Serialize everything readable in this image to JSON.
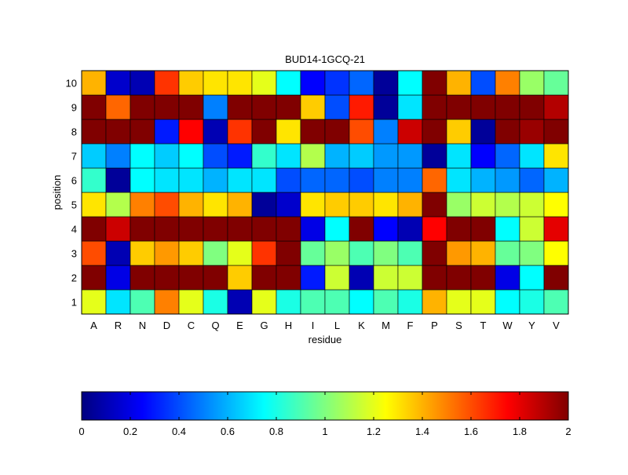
{
  "chart_data": {
    "type": "heatmap",
    "title": "BUD14-1GCQ-21",
    "xlabel": "residue",
    "ylabel": "position",
    "x_categories": [
      "A",
      "R",
      "N",
      "D",
      "C",
      "Q",
      "E",
      "G",
      "H",
      "I",
      "L",
      "K",
      "M",
      "F",
      "P",
      "S",
      "T",
      "W",
      "Y",
      "V"
    ],
    "y_categories": [
      "1",
      "2",
      "3",
      "4",
      "5",
      "6",
      "7",
      "8",
      "9",
      "10"
    ],
    "values": [
      [
        1.2,
        0.7,
        0.9,
        1.5,
        1.2,
        0.8,
        0.1,
        1.2,
        0.8,
        0.9,
        0.9,
        0.75,
        0.9,
        0.8,
        1.4,
        1.2,
        1.2,
        0.75,
        0.8,
        0.9
      ],
      [
        2.0,
        0.2,
        2.0,
        2.0,
        2.0,
        2.0,
        1.35,
        2.0,
        2.0,
        0.3,
        1.15,
        0.1,
        1.15,
        1.15,
        2.0,
        2.0,
        2.0,
        0.2,
        0.75,
        2.0
      ],
      [
        1.6,
        0.1,
        1.35,
        1.45,
        1.35,
        1.0,
        1.2,
        1.65,
        2.0,
        0.95,
        1.05,
        0.9,
        1.0,
        0.9,
        2.0,
        1.45,
        1.4,
        0.95,
        1.0,
        1.25
      ],
      [
        2.0,
        1.85,
        2.0,
        2.0,
        2.0,
        2.0,
        2.0,
        2.0,
        2.0,
        0.2,
        0.75,
        2.0,
        0.25,
        0.1,
        1.75,
        2.0,
        2.0,
        0.75,
        1.15,
        1.8
      ],
      [
        1.3,
        1.1,
        1.5,
        1.6,
        1.4,
        1.3,
        1.4,
        0.05,
        0.15,
        1.3,
        1.35,
        1.35,
        1.3,
        1.4,
        2.0,
        1.05,
        1.15,
        1.1,
        1.15,
        1.25
      ],
      [
        0.85,
        0.05,
        0.75,
        0.7,
        0.7,
        0.6,
        0.7,
        0.7,
        0.4,
        0.45,
        0.45,
        0.4,
        0.5,
        0.5,
        1.55,
        0.7,
        0.6,
        0.55,
        0.45,
        0.6
      ],
      [
        0.65,
        0.5,
        0.75,
        0.65,
        0.75,
        0.4,
        0.3,
        0.85,
        0.7,
        1.1,
        0.6,
        0.65,
        0.55,
        0.55,
        0.05,
        0.7,
        0.25,
        0.45,
        0.7,
        1.3
      ],
      [
        2.0,
        2.0,
        2.0,
        0.3,
        1.75,
        0.1,
        1.65,
        2.0,
        1.3,
        2.0,
        2.0,
        1.6,
        0.5,
        1.85,
        2.0,
        1.35,
        0.05,
        2.0,
        1.95,
        2.0
      ],
      [
        2.0,
        1.55,
        2.0,
        2.0,
        2.0,
        0.5,
        2.0,
        2.0,
        2.0,
        1.35,
        0.4,
        1.7,
        0.05,
        0.7,
        2.0,
        2.0,
        2.0,
        2.0,
        2.0,
        1.9
      ],
      [
        1.4,
        0.15,
        0.1,
        1.65,
        1.35,
        1.3,
        1.3,
        1.2,
        0.75,
        0.25,
        0.35,
        0.45,
        0.05,
        0.75,
        2.0,
        1.4,
        0.4,
        1.5,
        1.05,
        0.95
      ]
    ],
    "colorbar": {
      "colormap": "jet",
      "range": [
        0,
        2
      ],
      "ticks": [
        0,
        0.2,
        0.4,
        0.6,
        0.8,
        1,
        1.2,
        1.4,
        1.6,
        1.8,
        2
      ],
      "tick_labels": [
        "0",
        "0.2",
        "0.4",
        "0.6",
        "0.8",
        "1",
        "1.2",
        "1.4",
        "1.6",
        "1.8",
        "2"
      ]
    },
    "grid": true
  }
}
